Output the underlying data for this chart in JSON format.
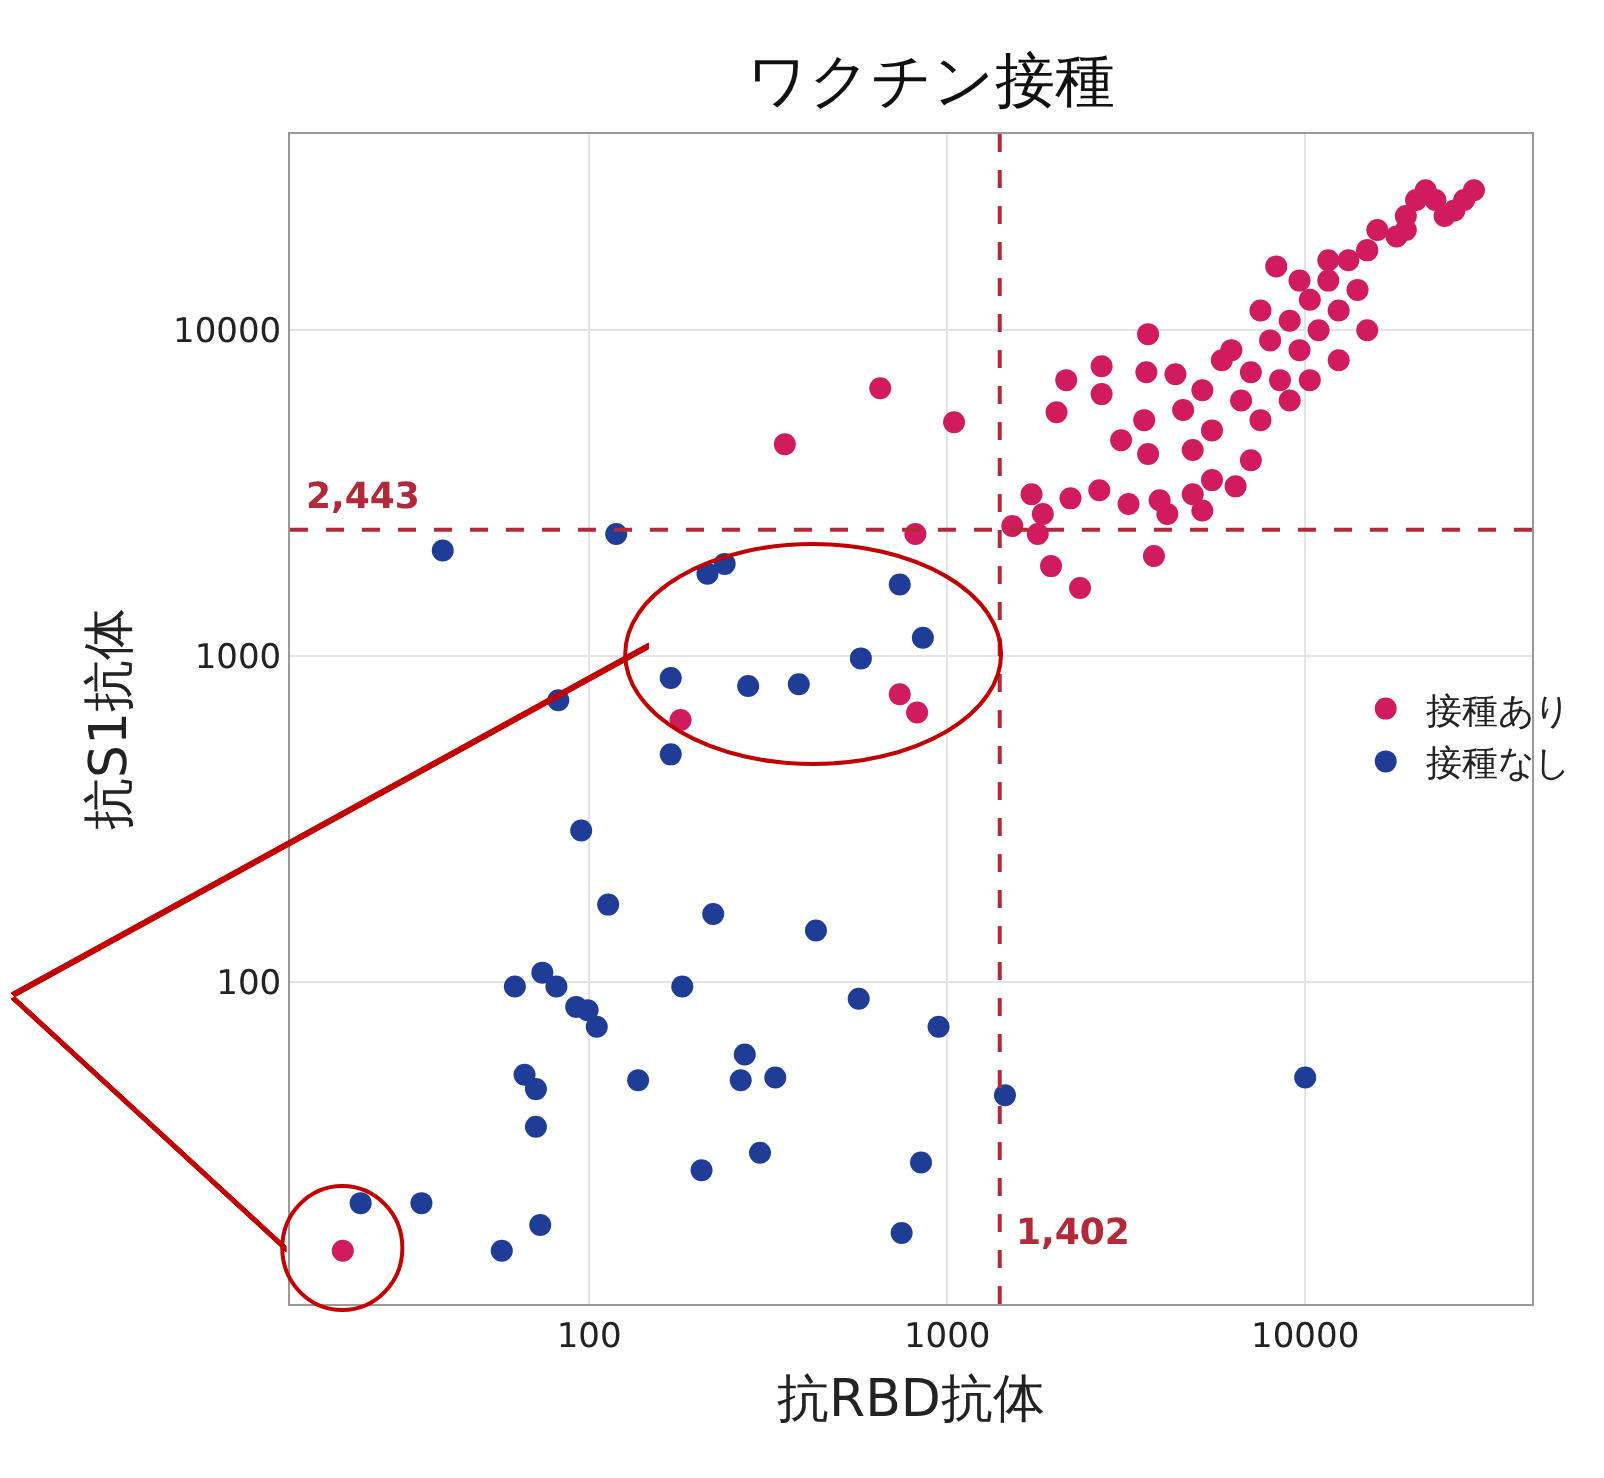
{
  "chart_data": {
    "type": "scatter",
    "title": "ワクチン接種",
    "xlabel": "抗RBD抗体",
    "ylabel": "抗S1抗体",
    "log": "xy",
    "xlim": [
      14.6,
      43000
    ],
    "ylim": [
      10.3,
      40000
    ],
    "xticks": [
      100,
      1000,
      10000
    ],
    "yticks": [
      100,
      1000,
      10000
    ],
    "grid": true,
    "legend": "right",
    "marker": "circle",
    "ref_lines": [
      {
        "axis": "y",
        "value": 2443,
        "label": "2,443",
        "color": "#b22a3a",
        "line_style": "dashed"
      },
      {
        "axis": "x",
        "value": 1402,
        "label": "1,402",
        "color": "#b22a3a",
        "line_style": "dashed"
      }
    ],
    "series": [
      {
        "name": "接種あり",
        "color": "#d01c5e",
        "x": [
          180,
          737,
          824,
          815,
          20.5,
          352,
          650,
          1045,
          8300,
          3640,
          2150,
          2020,
          2700,
          3600,
          4340,
          2700,
          3550,
          3060,
          3640,
          1720,
          2210,
          2660,
          3210,
          3920,
          4850,
          6390,
          1520,
          1790,
          3780,
          1950,
          2350,
          1850,
          4120,
          4560,
          5160,
          5490,
          4850,
          5850,
          6620,
          7050,
          7980,
          8500,
          9050,
          9640,
          10300,
          10900,
          11600,
          12400,
          13200,
          14000,
          14900,
          15900,
          18000,
          19100,
          20400,
          21700,
          24500,
          26100,
          27800,
          29600,
          9050,
          7500,
          12400,
          14900,
          10300,
          6220,
          7500,
          9640,
          11600,
          14900,
          19100,
          23100,
          5490,
          7050,
          5160
        ],
        "values": [
          637,
          764,
          672,
          2370,
          15,
          4470,
          6640,
          5220,
          15700,
          9730,
          7030,
          5600,
          7760,
          7430,
          7330,
          6370,
          5300,
          4600,
          4170,
          3140,
          3050,
          3230,
          2930,
          3010,
          3140,
          3320,
          2510,
          2370,
          2030,
          1890,
          1620,
          2730,
          2730,
          5690,
          6550,
          4930,
          4290,
          8090,
          6090,
          7430,
          9310,
          7030,
          10700,
          8690,
          12400,
          10000,
          14200,
          11500,
          16400,
          13300,
          17600,
          20300,
          19400,
          22400,
          25100,
          26900,
          22400,
          23300,
          25100,
          26900,
          6090,
          5300,
          8090,
          10000,
          7030,
          8690,
          11500,
          14200,
          16400,
          17600,
          20300,
          25100,
          3470,
          3990,
          2800
        ]
      },
      {
        "name": "接種なし",
        "color": "#1f3d96",
        "x": [
          39,
          119,
          214,
          239,
          737,
          855,
          574,
          169,
          278,
          385,
          169,
          82,
          95,
          113,
          222,
          430,
          62,
          74,
          81,
          92,
          99,
          105,
          182,
          566,
          946,
          66,
          71,
          71,
          137,
          272,
          265,
          331,
          1450,
          206,
          300,
          845,
          746,
          23,
          34,
          73,
          57,
          10000
        ],
        "values": [
          2110,
          2370,
          1790,
          1920,
          1660,
          1140,
          985,
          857,
          810,
          821,
          500,
          733,
          292,
          173,
          162,
          144,
          97,
          107,
          97,
          84,
          82,
          73,
          97,
          89,
          73,
          52,
          47,
          36,
          50,
          60,
          50,
          51,
          45,
          26.5,
          30,
          28,
          17,
          21,
          21,
          18,
          15,
          51
        ]
      }
    ]
  }
}
